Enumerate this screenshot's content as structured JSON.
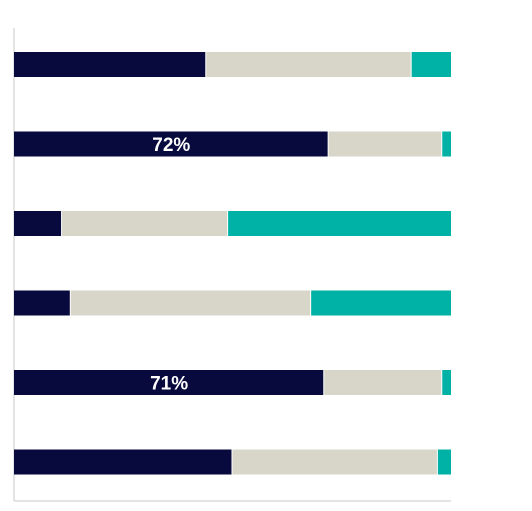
{
  "chart_data": {
    "type": "bar",
    "orientation": "horizontal",
    "stacked": true,
    "normalized_to": 100,
    "xlim": [
      0,
      100
    ],
    "grid": false,
    "legend": "none",
    "rows": [
      {
        "segments": [
          44,
          47,
          9
        ],
        "label": ""
      },
      {
        "segments": [
          72,
          26,
          2
        ],
        "label": "72%"
      },
      {
        "segments": [
          11,
          38,
          51
        ],
        "label": ""
      },
      {
        "segments": [
          13,
          55,
          32
        ],
        "label": ""
      },
      {
        "segments": [
          71,
          27,
          2
        ],
        "label": "71%"
      },
      {
        "segments": [
          50,
          47,
          3
        ],
        "label": ""
      }
    ],
    "series_colors": [
      "#080a3e",
      "#d7d6c8",
      "#00b1a5"
    ],
    "axis_color": "#c8c8c8"
  }
}
